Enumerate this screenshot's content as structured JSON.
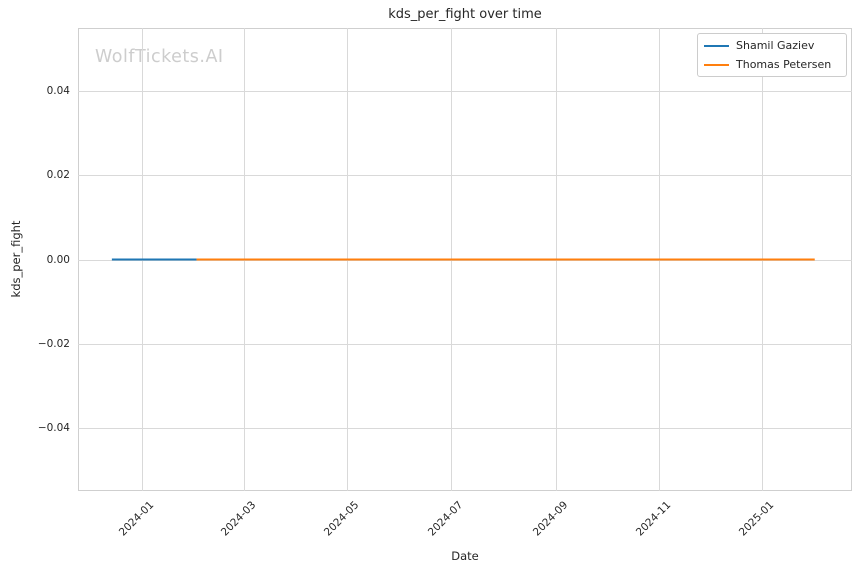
{
  "chart_data": {
    "type": "line",
    "title": "kds_per_fight over time",
    "xlabel": "Date",
    "ylabel": "kds_per_fight",
    "watermark": "WolfTickets.AI",
    "grid": true,
    "legend_position": "top-right",
    "xlim": [
      "2023-11-24",
      "2025-02-23"
    ],
    "ylim": [
      -0.0551,
      0.0551
    ],
    "x_ticks": [
      {
        "label": "2024-01",
        "date": "2024-01-01"
      },
      {
        "label": "2024-03",
        "date": "2024-03-01"
      },
      {
        "label": "2024-05",
        "date": "2024-05-01"
      },
      {
        "label": "2024-07",
        "date": "2024-07-01"
      },
      {
        "label": "2024-09",
        "date": "2024-09-01"
      },
      {
        "label": "2024-11",
        "date": "2024-11-01"
      },
      {
        "label": "2025-01",
        "date": "2025-01-01"
      }
    ],
    "y_ticks": [
      {
        "label": "0.04",
        "value": 0.04
      },
      {
        "label": "0.02",
        "value": 0.02
      },
      {
        "label": "0.00",
        "value": 0.0
      },
      {
        "label": "−0.02",
        "value": -0.02
      },
      {
        "label": "−0.04",
        "value": -0.04
      }
    ],
    "series": [
      {
        "name": "Shamil Gaziev",
        "color": "#1f77b4",
        "points": [
          {
            "x": "2023-12-14",
            "y": 0.0
          },
          {
            "x": "2024-02-02",
            "y": 0.0
          }
        ]
      },
      {
        "name": "Thomas Petersen",
        "color": "#ff7f0e",
        "points": [
          {
            "x": "2024-02-02",
            "y": 0.0
          },
          {
            "x": "2025-02-01",
            "y": 0.0
          }
        ]
      }
    ]
  }
}
